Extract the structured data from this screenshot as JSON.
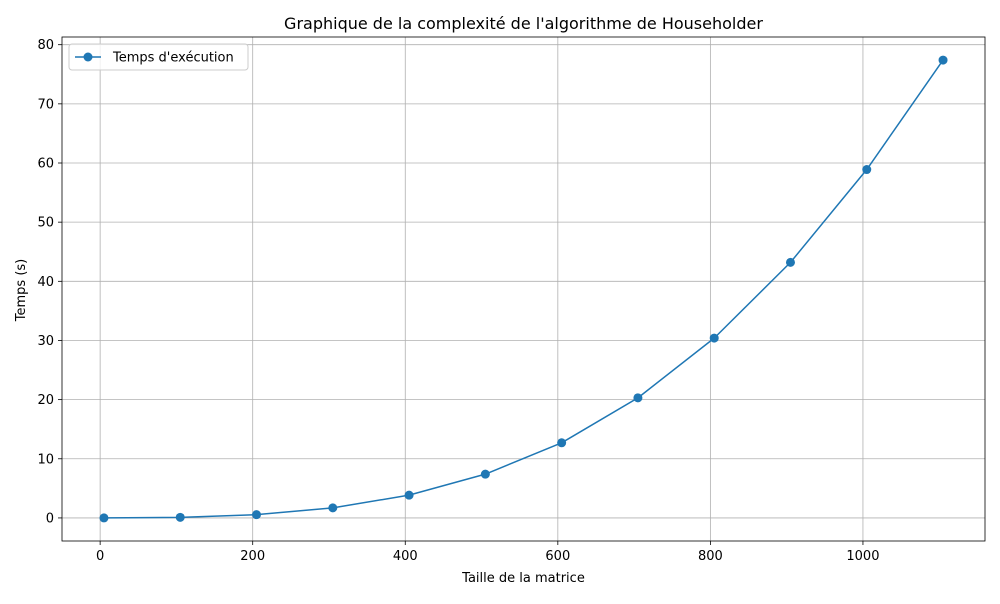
{
  "chart_data": {
    "type": "line",
    "title": "Graphique de la complexité de l'algorithme de Householder",
    "xlabel": "Taille de la matrice",
    "ylabel": "Temps (s)",
    "xlim": [
      -50,
      1160
    ],
    "ylim": [
      -3.9,
      81.3
    ],
    "xticks": [
      0,
      200,
      400,
      600,
      800,
      1000
    ],
    "yticks": [
      0,
      10,
      20,
      30,
      40,
      50,
      60,
      70,
      80
    ],
    "grid": true,
    "legend_position": "upper-left",
    "series": [
      {
        "name": "Temps d'exécution",
        "color": "#1f77b4",
        "marker": "circle",
        "x": [
          5,
          105,
          205,
          305,
          405,
          505,
          605,
          705,
          805,
          905,
          1005,
          1105
        ],
        "y": [
          0.0,
          0.1,
          0.55,
          1.7,
          3.85,
          7.4,
          12.7,
          20.3,
          30.4,
          43.2,
          58.9,
          77.4
        ]
      }
    ]
  }
}
